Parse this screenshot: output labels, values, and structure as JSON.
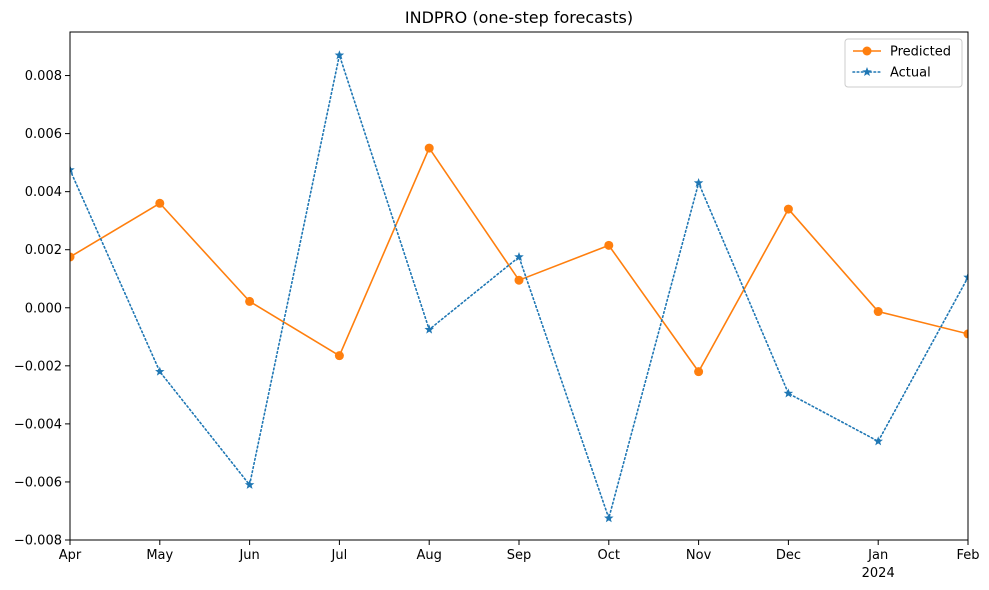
{
  "chart_data": {
    "type": "line",
    "title": "INDPRO (one-step forecasts)",
    "xlabel": "",
    "ylabel": "",
    "categories": [
      "Apr",
      "May",
      "Jun",
      "Jul",
      "Aug",
      "Sep",
      "Oct",
      "Nov",
      "Dec",
      "Jan",
      "Feb"
    ],
    "year_labels": [
      {
        "index": 9,
        "label": "2024"
      }
    ],
    "ylim": [
      -0.008,
      0.0095
    ],
    "yticks": [
      {
        "value": 0.008,
        "label": "0.008"
      },
      {
        "value": 0.006,
        "label": "0.006"
      },
      {
        "value": 0.004,
        "label": "0.004"
      },
      {
        "value": 0.002,
        "label": "0.002"
      },
      {
        "value": 0.0,
        "label": "0.000"
      },
      {
        "value": -0.002,
        "label": "−0.002"
      },
      {
        "value": -0.004,
        "label": "−0.004"
      },
      {
        "value": -0.006,
        "label": "−0.006"
      },
      {
        "value": -0.008,
        "label": "−0.008"
      }
    ],
    "series": [
      {
        "name": "Predicted",
        "color": "#ff7f0e",
        "line_style": "solid",
        "marker": "circle",
        "values": [
          0.00175,
          0.0036,
          0.00022,
          -0.00165,
          0.0055,
          0.00095,
          0.00215,
          -0.0022,
          0.0034,
          -0.00013,
          -0.0009
        ]
      },
      {
        "name": "Actual",
        "color": "#1f77b4",
        "line_style": "dotted",
        "marker": "star",
        "values": [
          0.00475,
          -0.0022,
          -0.0061,
          0.0087,
          -0.00075,
          0.00175,
          -0.00725,
          0.0043,
          -0.00295,
          -0.0046,
          0.00105
        ]
      }
    ],
    "grid": false,
    "legend_position": "top-right"
  }
}
